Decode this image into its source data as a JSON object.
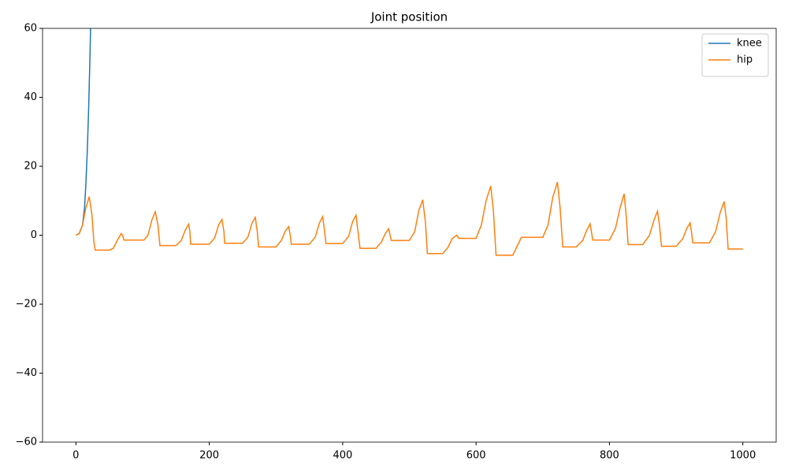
{
  "chart_data": {
    "type": "line",
    "title": "Joint position",
    "xlim": [
      -50,
      1050
    ],
    "xticks": [
      0,
      200,
      400,
      600,
      800,
      1000
    ],
    "ylim": [
      -60,
      60
    ],
    "yticks": [
      {
        "value": -60,
        "label": "−60"
      },
      {
        "value": -40,
        "label": "−40"
      },
      {
        "value": -20,
        "label": "−20"
      },
      0,
      20,
      40,
      60
    ],
    "legend": "upper right",
    "series": [
      {
        "name": "knee",
        "color": "#1f77b4",
        "x": [
          0,
          5,
          10,
          13,
          15,
          17,
          19,
          21,
          22
        ],
        "values": [
          0,
          0.5,
          3,
          8,
          15,
          24,
          36,
          51,
          60
        ]
      },
      {
        "name": "hip",
        "color": "#ff7f0e",
        "x": [
          0,
          5,
          10,
          15,
          20,
          24,
          27,
          29,
          50,
          56,
          62,
          68,
          70,
          72,
          102,
          108,
          114,
          119,
          123,
          126,
          150,
          158,
          164,
          169,
          171,
          172,
          200,
          208,
          214,
          219,
          222,
          223,
          250,
          258,
          264,
          269,
          272,
          274,
          300,
          308,
          314,
          319,
          321,
          323,
          350,
          359,
          365,
          370,
          373,
          375,
          400,
          409,
          415,
          420,
          423,
          426,
          450,
          458,
          464,
          469,
          471,
          473,
          500,
          508,
          514,
          520,
          524,
          527,
          550,
          558,
          564,
          571,
          573,
          574,
          600,
          608,
          615,
          622,
          626,
          630,
          655,
          662,
          668,
          700,
          708,
          715,
          722,
          726,
          730,
          750,
          760,
          766,
          771,
          773,
          775,
          800,
          809,
          816,
          822,
          825,
          828,
          850,
          860,
          867,
          872,
          875,
          878,
          900,
          910,
          916,
          921,
          923,
          925,
          950,
          959,
          966,
          972,
          975,
          978,
          1000
        ],
        "values": [
          0,
          0.5,
          3,
          8,
          11.2,
          6,
          -2,
          -4.3,
          -4.3,
          -3.8,
          -1.5,
          0.5,
          0,
          -1.4,
          -1.4,
          0,
          4.5,
          6.8,
          3,
          -3,
          -3,
          -1.5,
          1.5,
          3.2,
          1,
          -2.6,
          -2.6,
          -0.8,
          3,
          4.6,
          1,
          -2.3,
          -2.3,
          -0.5,
          3.5,
          5.2,
          1,
          -3.4,
          -3.4,
          -1.5,
          1.2,
          2.5,
          0.5,
          -2.6,
          -2.6,
          -0.5,
          3.5,
          5.4,
          1,
          -2.4,
          -2.4,
          -0.3,
          4,
          5.8,
          1,
          -3.8,
          -3.8,
          -2,
          0.5,
          1.9,
          0,
          -1.5,
          -1.5,
          1,
          7,
          10.3,
          4,
          -5.3,
          -5.3,
          -3.5,
          -1,
          0,
          -0.5,
          -0.9,
          -0.9,
          3,
          10,
          14.3,
          7,
          -5.8,
          -5.8,
          -3,
          -0.6,
          -0.6,
          3,
          11,
          15.4,
          8,
          -3.4,
          -3.4,
          -1.5,
          1.5,
          3.3,
          1,
          -1.4,
          -1.4,
          2,
          8,
          12,
          6,
          -2.7,
          -2.7,
          0,
          4.5,
          7,
          3,
          -3.2,
          -3.2,
          -1,
          2,
          3.6,
          1,
          -2.2,
          -2.2,
          1,
          6.5,
          9.8,
          5,
          -4,
          -4
        ]
      }
    ]
  }
}
